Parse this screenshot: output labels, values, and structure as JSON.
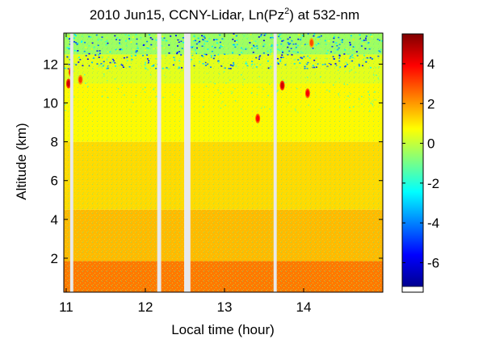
{
  "chart_data": {
    "type": "heatmap",
    "title_main": "2010 Jun15, CCNY-Lidar, Ln(Pz",
    "title_sup": "2",
    "title_tail": ") at 532-nm",
    "xlabel": "Local time (hour)",
    "ylabel": "Altitude (km)",
    "xlim": [
      10.97,
      15.0
    ],
    "ylim": [
      0.25,
      13.6
    ],
    "x_ticks": [
      11,
      12,
      13,
      14
    ],
    "x_tick_labels": [
      "11",
      "12",
      "13",
      "14"
    ],
    "y_ticks": [
      2,
      4,
      6,
      8,
      10,
      12
    ],
    "y_tick_labels": [
      "2",
      "4",
      "6",
      "8",
      "10",
      "12"
    ],
    "colorbar": {
      "min": -7.2,
      "max": 5.5,
      "ticks": [
        4,
        2,
        0,
        -2,
        -4,
        -6
      ],
      "tick_labels": [
        "4",
        "2",
        "0",
        "-2",
        "-4",
        "-6"
      ],
      "colormap": "jet"
    },
    "data_gaps_hours": [
      [
        11.05,
        11.09
      ],
      [
        12.15,
        12.2
      ],
      [
        12.49,
        12.57
      ],
      [
        13.62,
        13.66
      ]
    ],
    "layers": [
      {
        "alt_from": 0.25,
        "alt_to": 1.85,
        "value": 2.4
      },
      {
        "alt_from": 1.85,
        "alt_to": 4.5,
        "value": 1.6
      },
      {
        "alt_from": 4.5,
        "alt_to": 8.0,
        "value": 1.2
      },
      {
        "alt_from": 8.0,
        "alt_to": 11.0,
        "value": 0.8
      },
      {
        "alt_from": 11.0,
        "alt_to": 12.5,
        "value": 0.4
      },
      {
        "alt_from": 12.5,
        "alt_to": 13.6,
        "value": -0.5
      }
    ],
    "features": [
      {
        "x": 11.03,
        "alt": 11.0,
        "value": 4.5
      },
      {
        "x": 11.06,
        "alt": 11.6,
        "value": 3.8
      },
      {
        "x": 11.18,
        "alt": 11.2,
        "value": 3.2
      },
      {
        "x": 13.42,
        "alt": 9.2,
        "value": 3.8
      },
      {
        "x": 13.73,
        "alt": 10.9,
        "value": 4.5
      },
      {
        "x": 14.05,
        "alt": 10.5,
        "value": 4.0
      },
      {
        "x": 14.1,
        "alt": 13.1,
        "value": 3.0
      }
    ]
  }
}
